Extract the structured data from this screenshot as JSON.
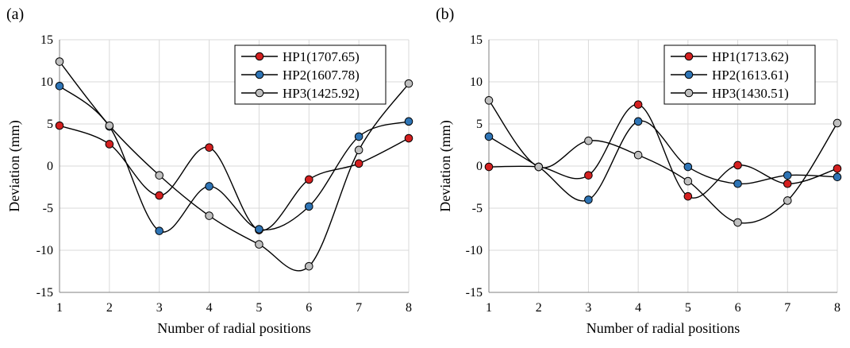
{
  "chart_data": [
    {
      "type": "line",
      "panel_label": "(a)",
      "xlabel": "Number of radial positions",
      "ylabel": "Deviation (mm)",
      "x": [
        1,
        2,
        3,
        4,
        5,
        6,
        7,
        8
      ],
      "ylim": [
        -15,
        15
      ],
      "yticks": [
        -15,
        -10,
        -5,
        0,
        5,
        10,
        15
      ],
      "grid": true,
      "legend_position": "top-right",
      "series": [
        {
          "name": "HP1(1707.65)",
          "color": "#d42020",
          "values": [
            4.8,
            2.6,
            -3.5,
            2.2,
            -7.6,
            -1.6,
            0.3,
            3.3
          ]
        },
        {
          "name": "HP2(1607.78)",
          "color": "#2e74b5",
          "values": [
            9.5,
            4.7,
            -7.7,
            -2.4,
            -7.5,
            -4.8,
            3.5,
            5.3
          ]
        },
        {
          "name": "HP3(1425.92)",
          "color": "#bfbfbf",
          "values": [
            12.4,
            4.8,
            -1.1,
            -5.9,
            -9.3,
            -11.9,
            1.9,
            9.8
          ]
        }
      ]
    },
    {
      "type": "line",
      "panel_label": "(b)",
      "xlabel": "Number of radial positions",
      "ylabel": "Deviation (mm)",
      "x": [
        1,
        2,
        3,
        4,
        5,
        6,
        7,
        8
      ],
      "ylim": [
        -15,
        15
      ],
      "yticks": [
        -15,
        -10,
        -5,
        0,
        5,
        10,
        15
      ],
      "grid": true,
      "legend_position": "top-right",
      "series": [
        {
          "name": "HP1(1713.62)",
          "color": "#d42020",
          "values": [
            -0.1,
            -0.1,
            -1.1,
            7.3,
            -3.6,
            0.1,
            -2.1,
            -0.3
          ]
        },
        {
          "name": "HP2(1613.61)",
          "color": "#2e74b5",
          "values": [
            3.5,
            -0.1,
            -4.0,
            5.3,
            -0.1,
            -2.1,
            -1.1,
            -1.3
          ]
        },
        {
          "name": "HP3(1430.51)",
          "color": "#bfbfbf",
          "values": [
            7.8,
            -0.1,
            3.0,
            1.3,
            -1.8,
            -6.7,
            -4.1,
            5.1
          ]
        }
      ]
    }
  ]
}
